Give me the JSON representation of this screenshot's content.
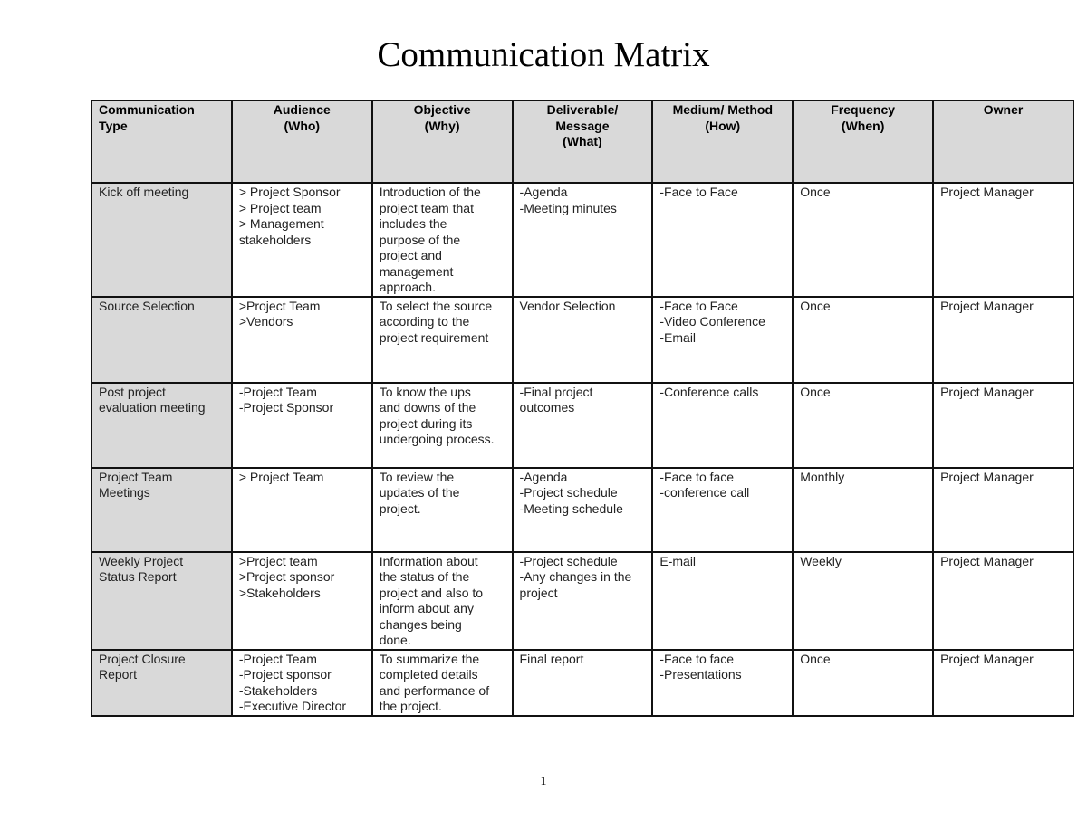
{
  "title": "Communication Matrix",
  "page_number": "1",
  "colors": {
    "header_bg": "#d9d9d9",
    "border": "#111111"
  },
  "table": {
    "headers": [
      [
        "Communication",
        "Type"
      ],
      [
        "Audience",
        "(Who)"
      ],
      [
        "Objective",
        "(Why)"
      ],
      [
        "Deliverable/",
        "Message",
        "(What)"
      ],
      [
        "Medium/ Method",
        "(How)"
      ],
      [
        "Frequency",
        "(When)"
      ],
      [
        "Owner"
      ]
    ],
    "rows": [
      [
        [
          "Kick off meeting"
        ],
        [
          "> Project Sponsor",
          "> Project team",
          "> Management",
          "stakeholders"
        ],
        [
          "Introduction of the",
          "project team that",
          "includes the",
          "purpose of the",
          "project and",
          "management",
          "approach."
        ],
        [
          "-Agenda",
          "-Meeting minutes"
        ],
        [
          "-Face to Face"
        ],
        [
          "Once"
        ],
        [
          "Project Manager"
        ]
      ],
      [
        [
          "Source Selection"
        ],
        [
          ">Project Team",
          ">Vendors"
        ],
        [
          "To select the source",
          "according to the",
          "project requirement"
        ],
        [
          "Vendor Selection"
        ],
        [
          "-Face to Face",
          "-Video Conference",
          "-Email"
        ],
        [
          "Once"
        ],
        [
          "Project Manager"
        ]
      ],
      [
        [
          "Post project",
          "evaluation meeting"
        ],
        [
          "-Project Team",
          "-Project Sponsor"
        ],
        [
          "To know the ups",
          "and downs of the",
          "project during its",
          "undergoing process."
        ],
        [
          "-Final project",
          "outcomes"
        ],
        [
          "-Conference calls"
        ],
        [
          "Once"
        ],
        [
          "Project Manager"
        ]
      ],
      [
        [
          "Project Team",
          "Meetings"
        ],
        [
          "> Project Team"
        ],
        [
          "To review the",
          "updates of the",
          "project."
        ],
        [
          "-Agenda",
          "-Project schedule",
          "-Meeting schedule"
        ],
        [
          "-Face to face",
          "-conference call"
        ],
        [
          "Monthly"
        ],
        [
          "Project Manager"
        ]
      ],
      [
        [
          "Weekly Project",
          "Status Report"
        ],
        [
          ">Project team",
          ">Project sponsor",
          ">Stakeholders"
        ],
        [
          "Information about",
          "the status of the",
          "project and also to",
          "inform about any",
          "changes being",
          "done."
        ],
        [
          "-Project schedule",
          "-Any changes in the",
          "project"
        ],
        [
          "E-mail"
        ],
        [
          "Weekly"
        ],
        [
          "Project Manager"
        ]
      ],
      [
        [
          "Project Closure",
          "Report"
        ],
        [
          "-Project Team",
          "-Project sponsor",
          "-Stakeholders",
          "-Executive Director"
        ],
        [
          "To summarize the",
          "completed details",
          "and performance of",
          "the project."
        ],
        [
          "Final report"
        ],
        [
          "-Face to face",
          "-Presentations"
        ],
        [
          "Once"
        ],
        [
          "Project Manager"
        ]
      ]
    ]
  }
}
